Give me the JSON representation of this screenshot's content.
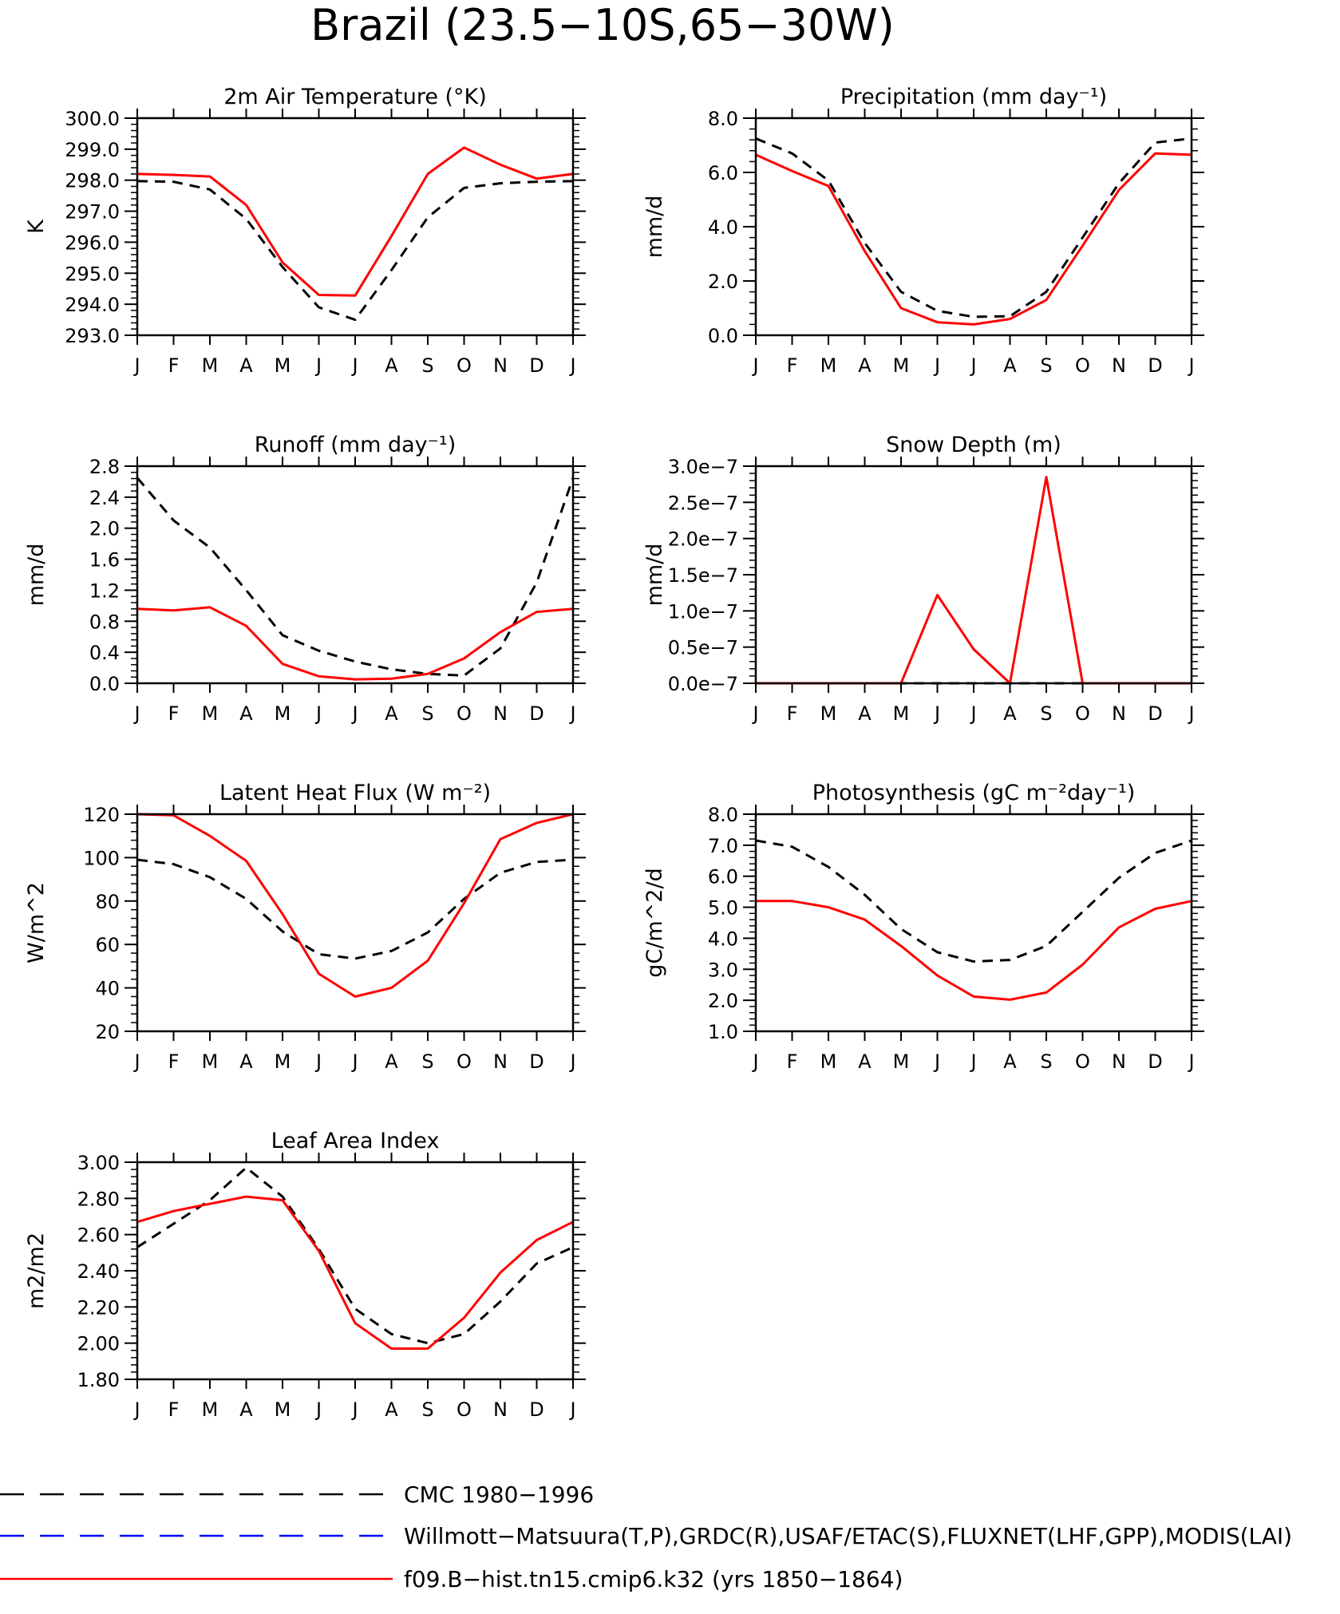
{
  "page": {
    "title": "Brazil (23.5−10S,65−30W)"
  },
  "months": [
    "J",
    "F",
    "M",
    "A",
    "M",
    "J",
    "J",
    "A",
    "S",
    "O",
    "N",
    "D",
    "J"
  ],
  "series_styles": {
    "cmc": {
      "color": "#000000",
      "dashed": true
    },
    "model": {
      "color": "#ff0000",
      "dashed": false
    }
  },
  "chart_data": [
    {
      "type": "line",
      "title": "2m Air Temperature (°K)",
      "ylabel": "K",
      "ylim": [
        293,
        300
      ],
      "yticks": [
        "293.0",
        "294.0",
        "295.0",
        "296.0",
        "297.0",
        "298.0",
        "299.0",
        "300.0"
      ],
      "categories": [
        "J",
        "F",
        "M",
        "A",
        "M",
        "J",
        "J",
        "A",
        "S",
        "O",
        "N",
        "D",
        "J"
      ],
      "series": [
        {
          "key": "cmc",
          "values": [
            297.97,
            297.95,
            297.7,
            296.75,
            295.2,
            293.9,
            293.5,
            295.1,
            296.8,
            297.75,
            297.9,
            297.95,
            297.97
          ]
        },
        {
          "key": "model",
          "values": [
            298.2,
            298.17,
            298.12,
            297.2,
            295.35,
            294.3,
            294.28,
            296.2,
            298.2,
            299.05,
            298.5,
            298.05,
            298.2
          ]
        }
      ]
    },
    {
      "type": "line",
      "title": "Precipitation (mm day⁻¹)",
      "ylabel": "mm/d",
      "ylim": [
        0,
        8
      ],
      "yticks": [
        "0.0",
        "2.0",
        "4.0",
        "6.0",
        "8.0"
      ],
      "categories": [
        "J",
        "F",
        "M",
        "A",
        "M",
        "J",
        "J",
        "A",
        "S",
        "O",
        "N",
        "D",
        "J"
      ],
      "series": [
        {
          "key": "cmc",
          "values": [
            7.25,
            6.7,
            5.7,
            3.4,
            1.6,
            0.9,
            0.68,
            0.7,
            1.6,
            3.6,
            5.6,
            7.1,
            7.25
          ]
        },
        {
          "key": "model",
          "values": [
            6.65,
            6.05,
            5.5,
            3.1,
            1.0,
            0.48,
            0.4,
            0.6,
            1.3,
            3.3,
            5.35,
            6.7,
            6.65
          ]
        }
      ]
    },
    {
      "type": "line",
      "title": "Runoff (mm day⁻¹)",
      "ylabel": "mm/d",
      "ylim": [
        0,
        2.8
      ],
      "yticks": [
        "0.0",
        "0.4",
        "0.8",
        "1.2",
        "1.6",
        "2.0",
        "2.4",
        "2.8"
      ],
      "categories": [
        "J",
        "F",
        "M",
        "A",
        "M",
        "J",
        "J",
        "A",
        "S",
        "O",
        "N",
        "D",
        "J"
      ],
      "series": [
        {
          "key": "cmc",
          "values": [
            2.65,
            2.1,
            1.75,
            1.2,
            0.62,
            0.42,
            0.28,
            0.18,
            0.12,
            0.1,
            0.45,
            1.3,
            2.65
          ]
        },
        {
          "key": "model",
          "values": [
            0.96,
            0.94,
            0.98,
            0.74,
            0.25,
            0.09,
            0.05,
            0.06,
            0.12,
            0.32,
            0.66,
            0.92,
            0.96
          ]
        }
      ]
    },
    {
      "type": "line",
      "title": "Snow Depth (m)",
      "ylabel": "mm/d",
      "ylim": [
        0,
        3e-07
      ],
      "yticks": [
        "0.0e−7",
        "0.5e−7",
        "1.0e−7",
        "1.5e−7",
        "2.0e−7",
        "2.5e−7",
        "3.0e−7"
      ],
      "categories": [
        "J",
        "F",
        "M",
        "A",
        "M",
        "J",
        "J",
        "A",
        "S",
        "O",
        "N",
        "D",
        "J"
      ],
      "series": [
        {
          "key": "cmc",
          "values": [
            0,
            0,
            0,
            0,
            0,
            0,
            0,
            0,
            0,
            0,
            0,
            0,
            0
          ]
        },
        {
          "key": "model",
          "values": [
            0,
            0,
            0,
            0,
            0,
            1.22e-07,
            4.7e-08,
            0,
            2.85e-07,
            0,
            0,
            0,
            0
          ]
        }
      ]
    },
    {
      "type": "line",
      "title": "Latent Heat Flux (W m⁻²)",
      "ylabel": "W/m^2",
      "ylim": [
        20,
        120
      ],
      "yticks": [
        "20",
        "40",
        "60",
        "80",
        "100",
        "120"
      ],
      "categories": [
        "J",
        "F",
        "M",
        "A",
        "M",
        "J",
        "J",
        "A",
        "S",
        "O",
        "N",
        "D",
        "J"
      ],
      "series": [
        {
          "key": "cmc",
          "values": [
            99,
            97,
            91,
            81,
            66,
            55.5,
            53.5,
            57,
            65.5,
            81,
            93,
            98,
            99
          ]
        },
        {
          "key": "model",
          "values": [
            120,
            119.5,
            110,
            98.5,
            74,
            46.5,
            36,
            40,
            52.5,
            79,
            108.5,
            116,
            120
          ]
        }
      ]
    },
    {
      "type": "line",
      "title": "Photosynthesis (gC m⁻²day⁻¹)",
      "ylabel": "gC/m^2/d",
      "ylim": [
        1,
        8
      ],
      "yticks": [
        "1.0",
        "2.0",
        "3.0",
        "4.0",
        "5.0",
        "6.0",
        "7.0",
        "8.0"
      ],
      "categories": [
        "J",
        "F",
        "M",
        "A",
        "M",
        "J",
        "J",
        "A",
        "S",
        "O",
        "N",
        "D",
        "J"
      ],
      "series": [
        {
          "key": "cmc",
          "values": [
            7.15,
            6.95,
            6.3,
            5.4,
            4.3,
            3.55,
            3.25,
            3.3,
            3.75,
            4.85,
            5.95,
            6.75,
            7.15
          ]
        },
        {
          "key": "model",
          "values": [
            5.2,
            5.2,
            5.0,
            4.6,
            3.75,
            2.8,
            2.12,
            2.02,
            2.25,
            3.15,
            4.35,
            4.95,
            5.2
          ]
        }
      ]
    },
    {
      "type": "line",
      "title": "Leaf Area Index",
      "ylabel": "m2/m2",
      "ylim": [
        1.8,
        3.0
      ],
      "yticks": [
        "1.80",
        "2.00",
        "2.20",
        "2.40",
        "2.60",
        "2.80",
        "3.00"
      ],
      "categories": [
        "J",
        "F",
        "M",
        "A",
        "M",
        "J",
        "J",
        "A",
        "S",
        "O",
        "N",
        "D",
        "J"
      ],
      "series": [
        {
          "key": "cmc",
          "values": [
            2.53,
            2.66,
            2.79,
            2.97,
            2.81,
            2.52,
            2.19,
            2.05,
            2.0,
            2.05,
            2.23,
            2.44,
            2.53
          ]
        },
        {
          "key": "model",
          "values": [
            2.67,
            2.73,
            2.77,
            2.81,
            2.79,
            2.51,
            2.11,
            1.97,
            1.97,
            2.14,
            2.39,
            2.57,
            2.67
          ]
        }
      ]
    }
  ],
  "legend": [
    {
      "label": "CMC 1980−1996",
      "color": "#000000",
      "dashed": true
    },
    {
      "label": "Willmott−Matsuura(T,P),GRDC(R),USAF/ETAC(S),FLUXNET(LHF,GPP),MODIS(LAI)",
      "color": "#0000ff",
      "dashed": true
    },
    {
      "label": "f09.B−hist.tn15.cmip6.k32 (yrs 1850−1864)",
      "color": "#ff0000",
      "dashed": false
    }
  ]
}
